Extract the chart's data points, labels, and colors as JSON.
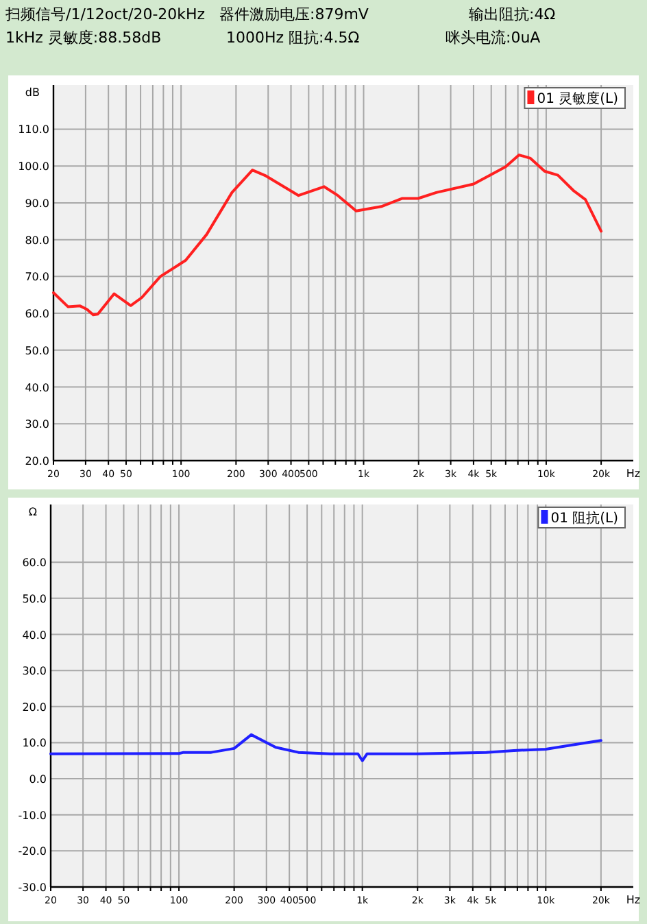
{
  "chart_data": [
    {
      "type": "line",
      "log": "x",
      "grid": true,
      "legend": "top right",
      "marker": "none",
      "line_style": "solid",
      "annotations": [
        "扫频信号/1/12oct/20-20kHz",
        "器件激励电压:879mV",
        "输出阻抗:4Ω",
        "1kHz 灵敏度:88.58dB",
        "1000Hz 阻抗:4.5Ω",
        "咪头电流:0uA"
      ],
      "ylabel": "dB",
      "xlabel": "Hz",
      "xlim": [
        20,
        30000
      ],
      "ylim": [
        20,
        122
      ],
      "xticks": [
        20,
        30,
        40,
        50,
        {
          "value": 60,
          "label": null
        },
        {
          "value": 70,
          "label": null
        },
        {
          "value": 80,
          "label": null
        },
        {
          "value": 90,
          "label": null
        },
        100,
        200,
        300,
        400,
        500,
        {
          "value": 600,
          "label": null
        },
        {
          "value": 700,
          "label": null
        },
        {
          "value": 800,
          "label": null
        },
        {
          "value": 900,
          "label": null
        },
        {
          "value": 1000,
          "label": "1k"
        },
        {
          "value": 2000,
          "label": "2k"
        },
        {
          "value": 3000,
          "label": "3k"
        },
        {
          "value": 4000,
          "label": "4k"
        },
        {
          "value": 5000,
          "label": "5k"
        },
        {
          "value": 6000,
          "label": null
        },
        {
          "value": 7000,
          "label": null
        },
        {
          "value": 8000,
          "label": null
        },
        {
          "value": 9000,
          "label": null
        },
        {
          "value": 10000,
          "label": "10k"
        },
        {
          "value": 20000,
          "label": "20k"
        }
      ],
      "yticks": [
        {
          "value": 20,
          "label": "20.0"
        },
        {
          "value": 30,
          "label": "30.0"
        },
        {
          "value": 40,
          "label": "40.0"
        },
        {
          "value": 50,
          "label": "50.0"
        },
        {
          "value": 60,
          "label": "60.0"
        },
        {
          "value": 70,
          "label": "70.0"
        },
        {
          "value": 80,
          "label": "80.0"
        },
        {
          "value": 90,
          "label": "90.0"
        },
        {
          "value": 100,
          "label": "100.0"
        },
        {
          "value": 110,
          "label": "110.0"
        }
      ],
      "series": [
        {
          "name": "01 灵敏度(L)",
          "color": "#ff2020",
          "x": [
            20,
            24,
            28,
            30.5,
            33,
            35,
            43,
            53,
            61,
            77,
            106,
            138,
            190,
            246,
            292,
            440,
            607,
            722,
            910,
            1250,
            1630,
            1990,
            2500,
            4000,
            6000,
            7100,
            8200,
            9800,
            11600,
            14200,
            16400,
            20000
          ],
          "values": [
            65.6,
            61.8,
            62.0,
            61.1,
            59.6,
            59.8,
            65.3,
            62.1,
            64.3,
            70.0,
            74.4,
            81.4,
            92.8,
            98.9,
            97.3,
            92.0,
            94.4,
            92.0,
            87.8,
            89.0,
            91.2,
            91.2,
            92.8,
            95.1,
            99.8,
            103.0,
            102.1,
            98.6,
            97.5,
            93.2,
            90.9,
            82.3
          ]
        }
      ]
    },
    {
      "type": "line",
      "log": "x",
      "grid": true,
      "legend": "top right",
      "marker": "none",
      "line_style": "solid",
      "ylabel": "Ω",
      "xlabel": "Hz",
      "xlim": [
        20,
        30000
      ],
      "ylim": [
        -30,
        76
      ],
      "xticks": [
        20,
        30,
        40,
        50,
        {
          "value": 60,
          "label": null
        },
        {
          "value": 70,
          "label": null
        },
        {
          "value": 80,
          "label": null
        },
        {
          "value": 90,
          "label": null
        },
        100,
        200,
        300,
        400,
        500,
        {
          "value": 600,
          "label": null
        },
        {
          "value": 700,
          "label": null
        },
        {
          "value": 800,
          "label": null
        },
        {
          "value": 900,
          "label": null
        },
        {
          "value": 1000,
          "label": "1k"
        },
        {
          "value": 2000,
          "label": "2k"
        },
        {
          "value": 3000,
          "label": "3k"
        },
        {
          "value": 4000,
          "label": "4k"
        },
        {
          "value": 5000,
          "label": "5k"
        },
        {
          "value": 6000,
          "label": null
        },
        {
          "value": 7000,
          "label": null
        },
        {
          "value": 8000,
          "label": null
        },
        {
          "value": 9000,
          "label": null
        },
        {
          "value": 10000,
          "label": "10k"
        },
        {
          "value": 20000,
          "label": "20k"
        }
      ],
      "yticks": [
        {
          "value": -30,
          "label": "-30.0"
        },
        {
          "value": -20,
          "label": "-20.0"
        },
        {
          "value": -10,
          "label": "-10.0"
        },
        {
          "value": 0,
          "label": "0.0"
        },
        {
          "value": 10,
          "label": "10.0"
        },
        {
          "value": 20,
          "label": "20.0"
        },
        {
          "value": 30,
          "label": "30.0"
        },
        {
          "value": 40,
          "label": "40.0"
        },
        {
          "value": 50,
          "label": "50.0"
        },
        {
          "value": 60,
          "label": "60.0"
        }
      ],
      "series": [
        {
          "name": "01 阻抗(L)",
          "color": "#2020ff",
          "x": [
            20,
            100,
            106,
            150,
            200,
            248,
            337,
            448,
            670,
            946,
            1000,
            1060,
            2000,
            4740,
            6700,
            10000,
            14160,
            20000
          ],
          "values": [
            6.9,
            7.0,
            7.3,
            7.3,
            8.4,
            12.2,
            8.7,
            7.3,
            6.9,
            6.9,
            5.0,
            6.9,
            6.9,
            7.3,
            7.8,
            8.2,
            9.4,
            10.6
          ]
        }
      ]
    }
  ]
}
